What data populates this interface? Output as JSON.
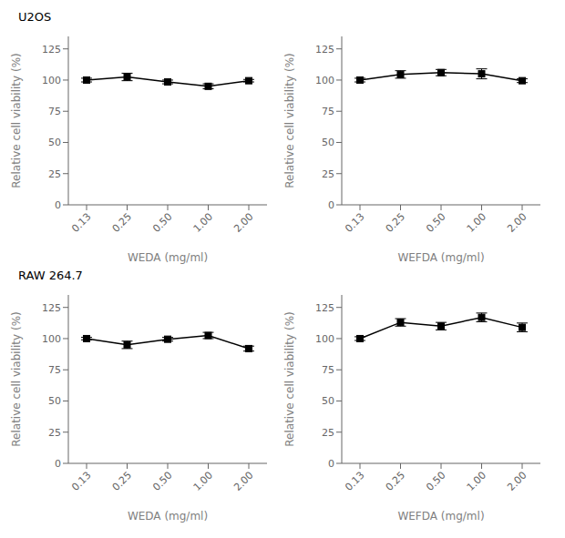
{
  "chart_data": [
    {
      "type": "line",
      "title": "U2OS",
      "xlabel": "WEDA (mg/ml)",
      "ylabel": "Relative cell viability (%)",
      "categories": [
        "0.13",
        "0.25",
        "0.50",
        "1.00",
        "2.00"
      ],
      "values": [
        100.0,
        102.5,
        98.5,
        95.0,
        99.5
      ],
      "yerr": [
        1.5,
        3.0,
        1.5,
        2.0,
        1.0
      ],
      "ylim": [
        0,
        135
      ],
      "yticks": [
        0,
        25,
        50,
        75,
        100,
        125
      ],
      "color": "black",
      "marker": "square",
      "grid": false
    },
    {
      "type": "line",
      "xlabel": "WEFDA (mg/ml)",
      "ylabel": "Relative cell viability (%)",
      "categories": [
        "0.13",
        "0.25",
        "0.50",
        "1.00",
        "2.00"
      ],
      "values": [
        100.0,
        104.5,
        106.0,
        105.0,
        99.5
      ],
      "yerr": [
        1.5,
        3.0,
        2.5,
        4.0,
        1.5
      ],
      "ylim": [
        0,
        135
      ],
      "yticks": [
        0,
        25,
        50,
        75,
        100,
        125
      ],
      "color": "black",
      "marker": "square",
      "grid": false
    },
    {
      "type": "line",
      "title": "RAW 264.7",
      "xlabel": "WEDA (mg/ml)",
      "ylabel": "Relative cell viability (%)",
      "categories": [
        "0.13",
        "0.25",
        "0.50",
        "1.00",
        "2.00"
      ],
      "values": [
        100.0,
        95.0,
        99.5,
        102.5,
        92.0
      ],
      "yerr": [
        1.0,
        3.0,
        1.5,
        2.5,
        2.0
      ],
      "ylim": [
        0,
        135
      ],
      "yticks": [
        0,
        25,
        50,
        75,
        100,
        125
      ],
      "color": "black",
      "marker": "square",
      "grid": false
    },
    {
      "type": "line",
      "xlabel": "WEFDA (mg/ml)",
      "ylabel": "Relative cell viability (%)",
      "categories": [
        "0.13",
        "0.25",
        "0.50",
        "1.00",
        "2.00"
      ],
      "values": [
        100.0,
        113.0,
        110.0,
        117.0,
        109.0
      ],
      "yerr": [
        1.5,
        3.0,
        3.0,
        3.5,
        3.5
      ],
      "ylim": [
        0,
        135
      ],
      "yticks": [
        0,
        25,
        50,
        75,
        100,
        125
      ],
      "color": "black",
      "marker": "square",
      "grid": false
    }
  ]
}
